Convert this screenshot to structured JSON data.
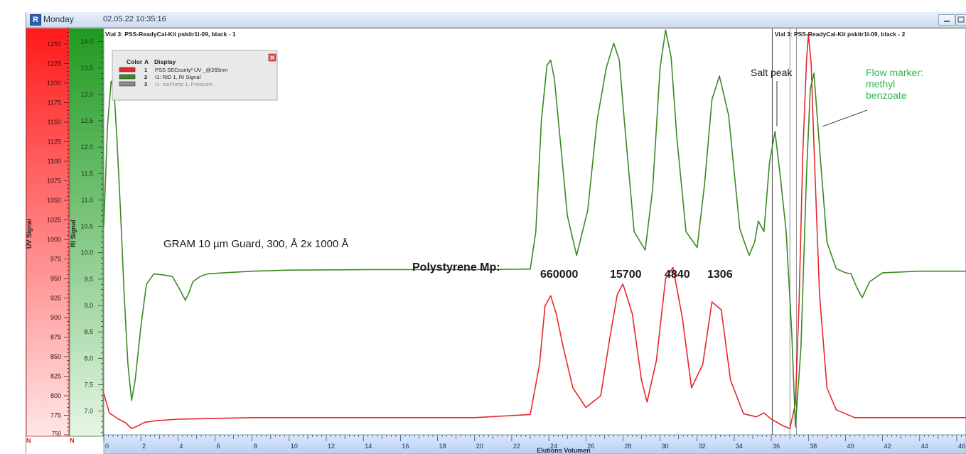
{
  "window": {
    "app_icon": "R",
    "day": "Monday",
    "datetime": "02.05.22  10:35:16"
  },
  "legend": {
    "headers": [
      "Color",
      "A",
      "Display"
    ],
    "rows": [
      {
        "color": "#e8262a",
        "a": "1",
        "label": "PSS SECcurity² UV _@265nm"
      },
      {
        "color": "#3a8a22",
        "a": "2",
        "label": "I1: RID 1, RI Signal"
      },
      {
        "color": "#8a8a8a",
        "a": "3",
        "label": "I1: IsoPump 1, Pressure"
      }
    ]
  },
  "chart_data": {
    "type": "line",
    "title": "Vial  3: PSS-ReadyCal-Kit pskitr1l-09, black - 1",
    "title2": "Vial  3: PSS-ReadyCal-Kit pskitr1l-09, black - 2",
    "xlabel": "Elutions Volumen",
    "xlim": [
      0,
      46.5
    ],
    "x_ticks": [
      0,
      2,
      4,
      6,
      8,
      10,
      12,
      14,
      16,
      18,
      20,
      22,
      24,
      26,
      28,
      30,
      32,
      34,
      36,
      38,
      40,
      42,
      44,
      46
    ],
    "uv_axis": {
      "label": "UV Signal",
      "range": [
        750,
        1270
      ],
      "ticks": [
        775,
        800,
        825,
        850,
        875,
        900,
        925,
        950,
        975,
        1000,
        1025,
        1050,
        1075,
        1100,
        1125,
        1150,
        1175,
        1200,
        1225,
        1250
      ],
      "bottom_tick": "750",
      "bottom_marker": "N",
      "color_top": "#ff1a1a",
      "color_bottom": "#ffe6e6"
    },
    "ri_axis": {
      "label": "RI Signal",
      "range": [
        6.55,
        14.25
      ],
      "ticks": [
        "7.0",
        "7.5",
        "8.0",
        "8.5",
        "9.0",
        "9.5",
        "10.0",
        "10.5",
        "11.0",
        "11.5",
        "12.0",
        "12.5",
        "13.0",
        "13.5",
        "14.0"
      ],
      "bottom_marker": "N",
      "color_top": "#1f9a1f",
      "color_bottom": "#e6f5e6"
    },
    "series": [
      {
        "name": "PSS SECcurity² UV _@265nm",
        "axis": "uv",
        "color": "#e8262a",
        "x": [
          0.0,
          0.3,
          0.8,
          1.2,
          1.5,
          1.8,
          2.2,
          2.8,
          4,
          8,
          14,
          20,
          23.0,
          23.5,
          23.8,
          24.1,
          24.4,
          24.8,
          25.3,
          26.0,
          26.8,
          27.3,
          27.7,
          28.0,
          28.5,
          29.0,
          29.3,
          29.8,
          30.3,
          30.7,
          31.2,
          31.7,
          32.3,
          32.8,
          33.3,
          33.8,
          34.5,
          35.2,
          35.6,
          36.0,
          36.6,
          37.0,
          37.3,
          37.5,
          37.7,
          37.9,
          38.0,
          38.15,
          38.3,
          38.6,
          39.0,
          39.5,
          40.5,
          42,
          44,
          46.5
        ],
        "y": [
          803,
          778,
          770,
          765,
          758,
          761,
          766,
          768,
          770,
          772,
          772,
          772,
          776,
          840,
          915,
          928,
          905,
          860,
          810,
          785,
          800,
          875,
          930,
          943,
          905,
          820,
          792,
          845,
          950,
          964,
          900,
          810,
          840,
          920,
          910,
          820,
          777,
          773,
          778,
          770,
          762,
          758,
          790,
          920,
          1110,
          1230,
          1262,
          1225,
          1120,
          930,
          810,
          782,
          772,
          772,
          772,
          772
        ]
      },
      {
        "name": "I1: RID 1, RI Signal",
        "axis": "ri",
        "color": "#3a8a22",
        "x": [
          0.0,
          0.2,
          0.4,
          0.55,
          0.7,
          0.9,
          1.1,
          1.3,
          1.5,
          1.7,
          2.0,
          2.3,
          2.7,
          3.2,
          3.7,
          4.1,
          4.4,
          4.6,
          4.8,
          5.2,
          5.6,
          6.5,
          8,
          10,
          14,
          20,
          23.0,
          23.3,
          23.6,
          23.9,
          24.1,
          24.3,
          24.6,
          25.0,
          25.5,
          26.1,
          26.6,
          27.1,
          27.5,
          27.8,
          28.1,
          28.6,
          29.2,
          29.6,
          30.0,
          30.3,
          30.6,
          30.9,
          31.4,
          32.0,
          32.4,
          32.8,
          33.2,
          33.7,
          34.3,
          34.8,
          35.1,
          35.3,
          35.6,
          35.9,
          36.2,
          36.5,
          36.8,
          37.1,
          37.3,
          37.6,
          37.9,
          38.1,
          38.3,
          38.6,
          39.0,
          39.5,
          40.0,
          40.3,
          40.6,
          40.9,
          41.3,
          42,
          44,
          46.5
        ],
        "y": [
          10.5,
          12.4,
          13.25,
          13.1,
          12.2,
          10.8,
          9.2,
          7.9,
          7.2,
          7.6,
          8.6,
          9.4,
          9.6,
          9.58,
          9.55,
          9.3,
          9.1,
          9.25,
          9.45,
          9.55,
          9.6,
          9.62,
          9.65,
          9.67,
          9.68,
          9.68,
          9.69,
          10.4,
          12.5,
          13.55,
          13.65,
          13.3,
          12.2,
          10.7,
          9.95,
          10.8,
          12.5,
          13.5,
          13.97,
          13.65,
          12.4,
          10.4,
          10.05,
          11.2,
          13.5,
          14.22,
          13.7,
          12.2,
          10.4,
          10.1,
          11.3,
          12.9,
          13.35,
          12.6,
          10.45,
          9.95,
          10.2,
          10.6,
          10.4,
          11.7,
          12.3,
          11.4,
          10.4,
          8.5,
          6.7,
          8.2,
          11.5,
          13.1,
          13.4,
          12.0,
          10.2,
          9.7,
          9.62,
          9.6,
          9.35,
          9.15,
          9.45,
          9.62,
          9.65,
          9.65
        ]
      }
    ],
    "annotations": {
      "column_desc": "GRAM 10 µm Guard, 300, Å 2x 1000 Å",
      "polystyrene_label": "Polystyrene Mp:",
      "peaks": [
        "660000",
        "15700",
        "4840",
        "1306"
      ],
      "salt_peak": "Salt peak",
      "flow_marker": [
        "Flow marker:",
        "methyl",
        "benzoate"
      ]
    },
    "grid": false
  }
}
